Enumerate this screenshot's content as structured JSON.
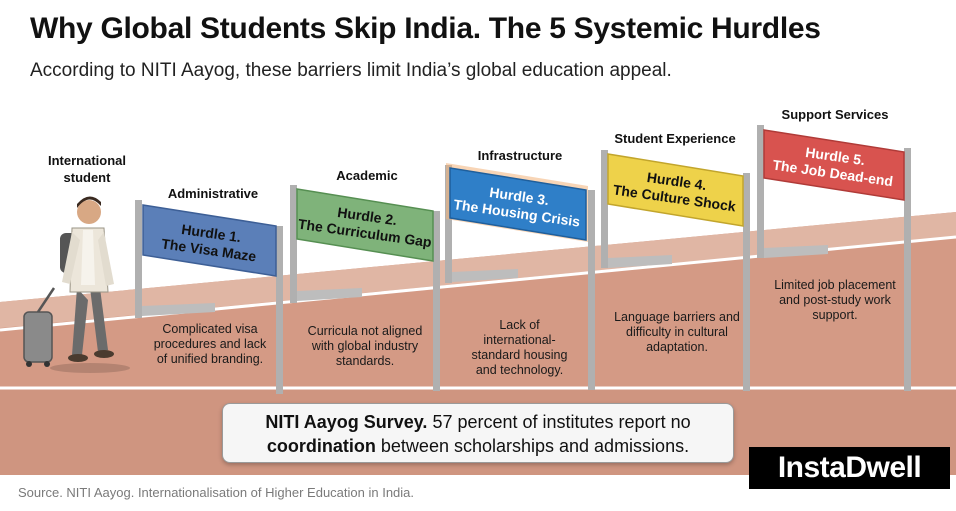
{
  "header": {
    "title": "Why Global Students Skip India. The 5 Systemic Hurdles",
    "subtitle": "According to NITI Aayog, these barriers limit India’s global education appeal."
  },
  "student_label": "International student",
  "hurdles": [
    {
      "category": "Administrative",
      "sign_line1": "Hurdle 1.",
      "sign_line2": "The Visa Maze",
      "description": "Complicated visa procedures and lack of unified branding.",
      "color": "#5b7fb8"
    },
    {
      "category": "Academic",
      "sign_line1": "Hurdle 2.",
      "sign_line2": "The Curriculum Gap",
      "description": "Curricula not aligned with global industry standards.",
      "color": "#7fb37a"
    },
    {
      "category": "Infrastructure",
      "sign_line1": "Hurdle 3.",
      "sign_line2": "The Housing Crisis",
      "description": "Lack of international-standard housing and technology.",
      "color": "#2f7fc8"
    },
    {
      "category": "Student Experience",
      "sign_line1": "Hurdle 4.",
      "sign_line2": "The Culture Shock",
      "description": "Language barriers and difficulty in cultural adaptation.",
      "color": "#eed24a"
    },
    {
      "category": "Support Services",
      "sign_line1": "Hurdle 5.",
      "sign_line2": "The Job Dead-end",
      "description": "Limited job placement and post-study work support.",
      "color": "#d8534f"
    }
  ],
  "callout": {
    "bold1": "NITI Aayog Survey.",
    "text1": " 57 percent of institutes report no",
    "bold2": "coordination",
    "text2": " between scholarships and admissions."
  },
  "brand": "InstaDwell",
  "source": "Source. NITI Aayog. Internationalisation of Higher Education in India.",
  "colors": {
    "track": "#c98d78",
    "track_light": "#e5c2b2",
    "lane_line": "#ffffff",
    "post": "#b9b9b9"
  }
}
